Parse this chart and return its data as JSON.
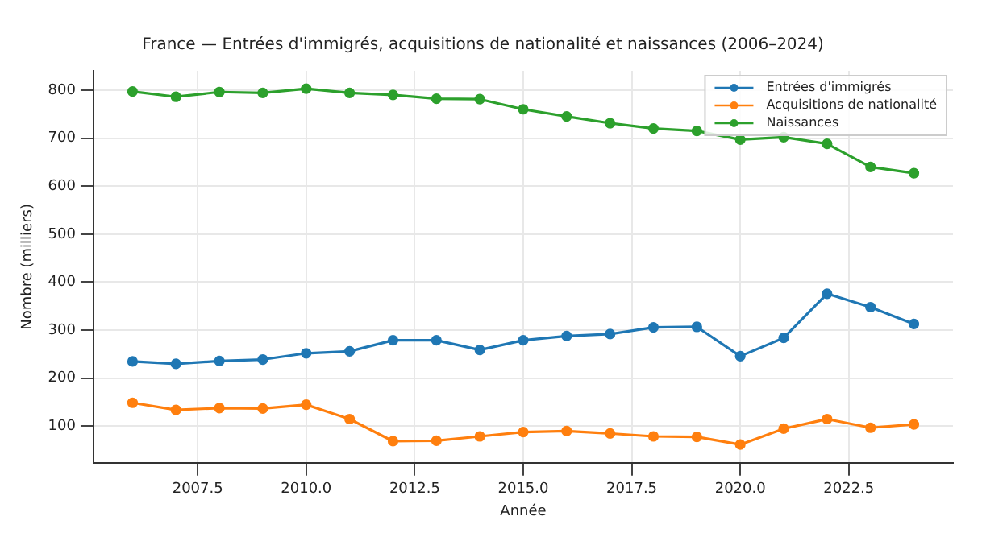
{
  "chart_data": {
    "type": "line",
    "title": "France — Entrées d'immigrés, acquisitions de nationalité et naissances (2006–2024)",
    "xlabel": "Année",
    "ylabel": "Nombre (milliers)",
    "x": [
      2006,
      2007,
      2008,
      2009,
      2010,
      2011,
      2012,
      2013,
      2014,
      2015,
      2016,
      2017,
      2018,
      2019,
      2020,
      2021,
      2022,
      2023,
      2024
    ],
    "series": [
      {
        "name": "Entrées d'immigrés",
        "color": "#1f77b4",
        "values": [
          235,
          230,
          236,
          239,
          252,
          256,
          279,
          279,
          259,
          279,
          288,
          292,
          306,
          307,
          246,
          284,
          376,
          348,
          313
        ]
      },
      {
        "name": "Acquisitions de nationalité",
        "color": "#ff7f0e",
        "values": [
          149,
          134,
          138,
          137,
          145,
          115,
          69,
          70,
          79,
          88,
          90,
          85,
          79,
          78,
          62,
          95,
          115,
          97,
          104
        ]
      },
      {
        "name": "Naissances",
        "color": "#2ca02c",
        "values": [
          797,
          786,
          796,
          794,
          803,
          794,
          790,
          782,
          781,
          760,
          745,
          731,
          720,
          715,
          697,
          702,
          688,
          640,
          627
        ]
      }
    ],
    "xlim": [
      2005.1,
      2024.9
    ],
    "xticks": [
      {
        "value": 2007.5,
        "label": "2007.5"
      },
      {
        "value": 2010,
        "label": "2010.0"
      },
      {
        "value": 2012.5,
        "label": "2012.5"
      },
      {
        "value": 2015,
        "label": "2015.0"
      },
      {
        "value": 2017.5,
        "label": "2017.5"
      },
      {
        "value": 2020,
        "label": "2020.0"
      },
      {
        "value": 2022.5,
        "label": "2022.5"
      }
    ],
    "ylim": [
      24,
      840
    ],
    "yticks": [
      100,
      200,
      300,
      400,
      500,
      600,
      700,
      800
    ],
    "grid": true,
    "legend": "top right",
    "marker": "circle",
    "line_style": "solid"
  }
}
